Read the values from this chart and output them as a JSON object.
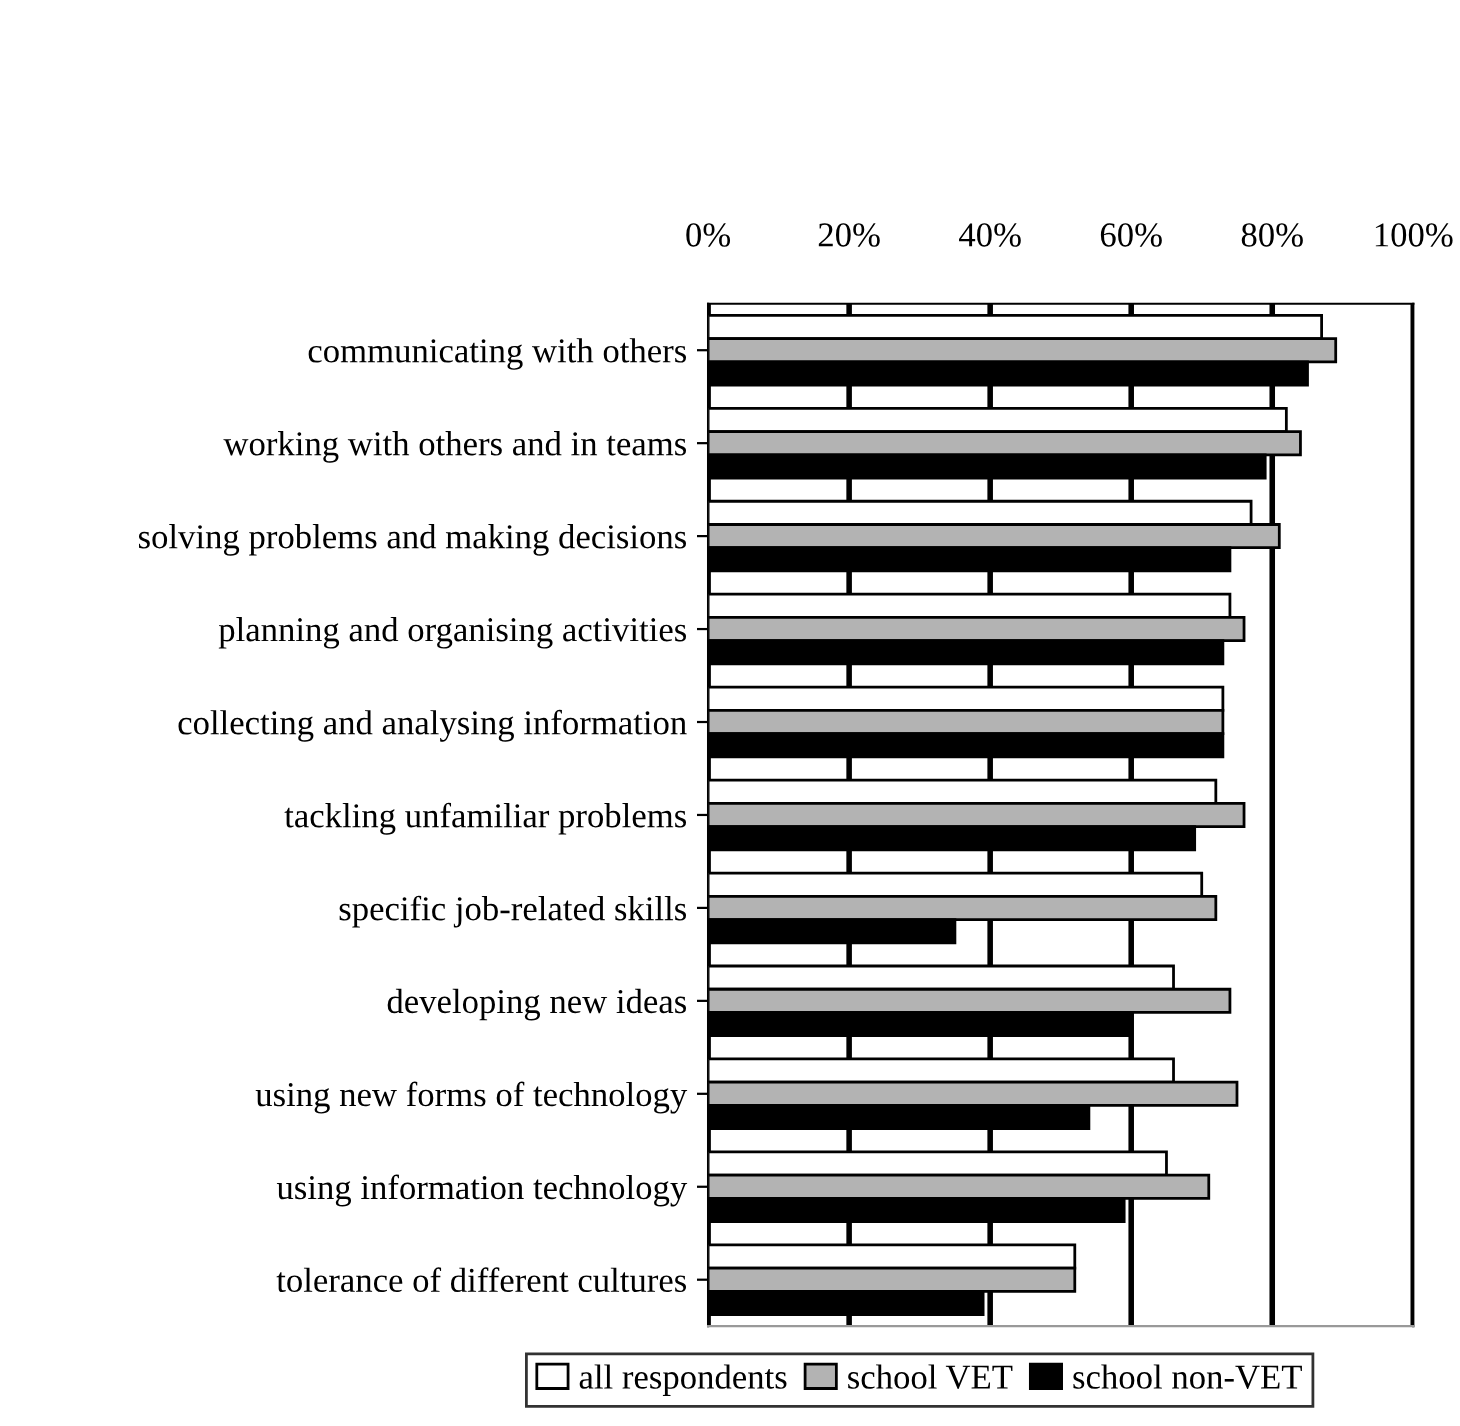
{
  "chart_data": {
    "type": "bar",
    "orientation": "horizontal",
    "categories": [
      "communicating with others",
      "working with others and in teams",
      "solving problems and making decisions",
      "planning and organising activities",
      "collecting and analysing information",
      "tackling unfamiliar problems",
      "specific job-related skills",
      "developing new ideas",
      "using new forms of technology",
      "using information technology",
      "tolerance of different cultures"
    ],
    "series": [
      {
        "name": "all respondents",
        "color": "#ffffff",
        "values": [
          87,
          82,
          77,
          74,
          73,
          72,
          70,
          66,
          66,
          65,
          52
        ]
      },
      {
        "name": "school VET",
        "color": "#b3b3b3",
        "values": [
          89,
          84,
          81,
          76,
          73,
          76,
          72,
          74,
          75,
          71,
          52
        ]
      },
      {
        "name": "school non-VET",
        "color": "#000000",
        "values": [
          85,
          79,
          74,
          73,
          73,
          69,
          35,
          60,
          54,
          59,
          39
        ]
      }
    ],
    "xlim": [
      0,
      100
    ],
    "xticks": [
      {
        "value": 0,
        "label": "0%"
      },
      {
        "value": 20,
        "label": "20%"
      },
      {
        "value": 40,
        "label": "40%"
      },
      {
        "value": 60,
        "label": "60%"
      },
      {
        "value": 80,
        "label": "80%"
      },
      {
        "value": 100,
        "label": "100%"
      }
    ],
    "grid": "x",
    "legend": "bottom"
  }
}
